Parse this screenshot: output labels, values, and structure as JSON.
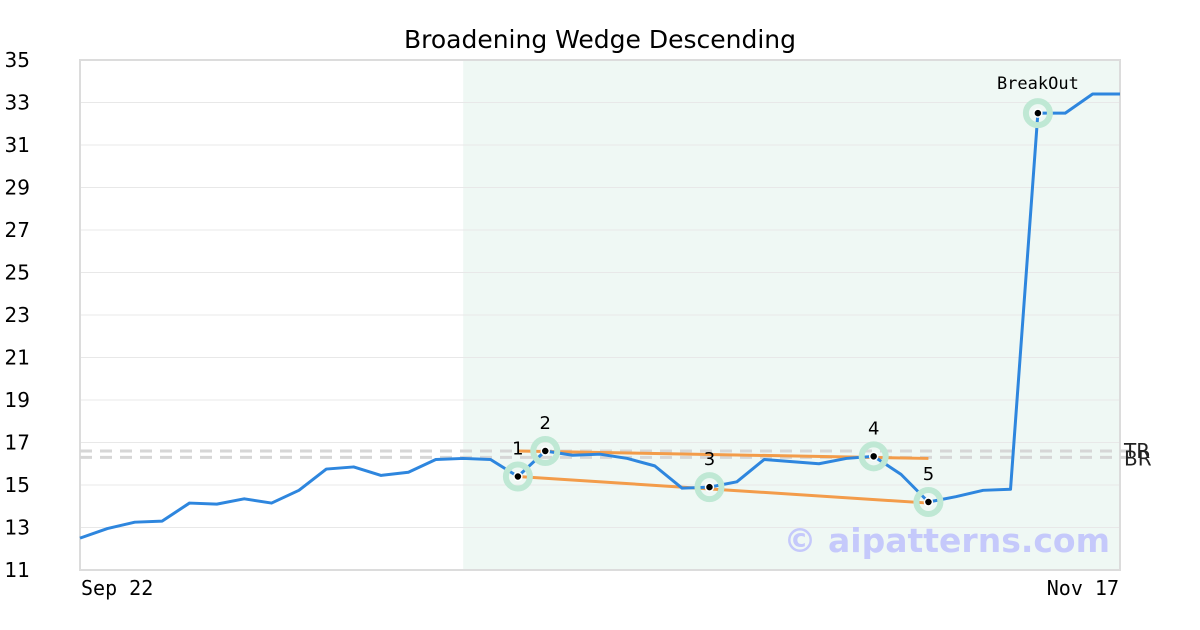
{
  "chart_data": {
    "type": "line",
    "title": "Broadening Wedge Descending",
    "xlabel": "",
    "ylabel": "",
    "x_tick_labels": [
      "Sep 22",
      "Nov 17"
    ],
    "ylim": [
      11,
      35
    ],
    "yticks": [
      11,
      13,
      15,
      17,
      19,
      21,
      23,
      25,
      27,
      29,
      31,
      33,
      35
    ],
    "grid": true,
    "colors": {
      "price": "#2e86de",
      "trendline": "#f39c4a",
      "highlight": "#e4f3ec",
      "marker_ring": "#bfe8d4",
      "reference": "#d6d6d6"
    },
    "series": [
      {
        "values": [
          12.5,
          12.95,
          13.25,
          13.3,
          14.15,
          14.1,
          14.35,
          14.15,
          14.75,
          15.75,
          15.85,
          15.45,
          15.6,
          16.2,
          16.25,
          16.2,
          15.4,
          16.6,
          16.4,
          16.45,
          16.25,
          15.9,
          14.85,
          14.9,
          15.15,
          16.2,
          16.1,
          16.0,
          16.25,
          16.35,
          15.5,
          14.2,
          14.45,
          14.75,
          14.8,
          32.5,
          32.5,
          33.4,
          33.4
        ]
      }
    ],
    "highlight_range": [
      14,
      38
    ],
    "pattern_points": [
      {
        "label": "1",
        "index": 16,
        "value": 15.4
      },
      {
        "label": "2",
        "index": 17,
        "value": 16.6
      },
      {
        "label": "3",
        "index": 23,
        "value": 14.9
      },
      {
        "label": "4",
        "index": 29,
        "value": 16.35
      },
      {
        "label": "5",
        "index": 31,
        "value": 14.2
      }
    ],
    "trendlines": [
      {
        "from": {
          "index": 16,
          "value": 15.4
        },
        "to": {
          "index": 31,
          "value": 14.15
        }
      },
      {
        "from": {
          "index": 16,
          "value": 16.6
        },
        "to": {
          "index": 31,
          "value": 16.25
        }
      }
    ],
    "breakout": {
      "label": "BreakOut",
      "index": 35,
      "value": 32.5
    },
    "reference_lines": [
      {
        "label": "TR",
        "value": 16.6
      },
      {
        "label": "BR",
        "value": 16.3
      }
    ],
    "watermark": "© aipatterns.com"
  }
}
